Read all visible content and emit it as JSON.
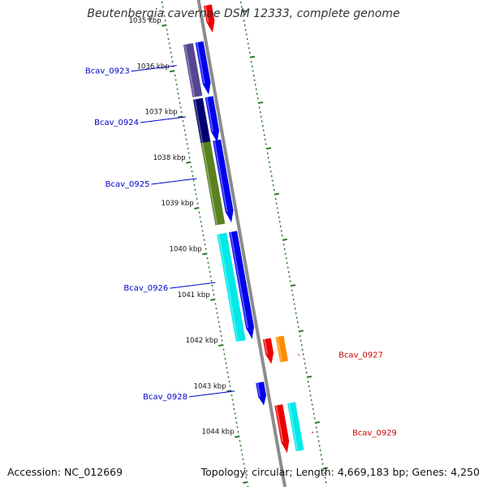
{
  "title": "Beutenbergia cavernae DSM 12333, complete genome",
  "footer": {
    "accession": "Accession: NC_012669",
    "topology": "Topology: circular; Length: 4,669,183 bp; Genes: 4,250"
  },
  "colors": {
    "backbone": "#8c8c8c",
    "ruler_dots": "#2a7a2a",
    "label_plus": "#0000cc",
    "label_minus": "#cc0000"
  },
  "ruler": {
    "labels": [
      "1035 kbp",
      "1036 kbp",
      "1037 kbp",
      "1038 kbp",
      "1039 kbp",
      "1040 kbp",
      "1041 kbp",
      "1042 kbp",
      "1043 kbp",
      "1044 kbp"
    ]
  },
  "genes": {
    "plus": [
      {
        "name": "Bcav_0923",
        "start_kbp": 1035.45,
        "end_kbp": 1036.6,
        "cds_color": "#0000ee",
        "gene_color": "#564690"
      },
      {
        "name": "Bcav_0924",
        "start_kbp": 1036.65,
        "end_kbp": 1037.65,
        "cds_color": "#0000ee",
        "gene_color": "#00006e"
      },
      {
        "name": "Bcav_0925",
        "start_kbp": 1037.6,
        "end_kbp": 1039.4,
        "cds_color": "#0000ee",
        "gene_color": "#5a8020"
      },
      {
        "name": "Bcav_0926",
        "start_kbp": 1039.6,
        "end_kbp": 1041.95,
        "cds_color": "#0000ee",
        "gene_color": "#00e8e8"
      },
      {
        "name": "Bcav_0928",
        "start_kbp": 1042.9,
        "end_kbp": 1043.4,
        "cds_color": "#0000ee",
        "gene_color": ""
      }
    ],
    "minus": [
      {
        "name": "",
        "start_kbp": 1034.7,
        "end_kbp": 1035.3,
        "cds_color": "#ee0000",
        "gene_color": ""
      },
      {
        "name": "Bcav_0927",
        "start_kbp": 1042.0,
        "end_kbp": 1042.55,
        "cds_color": "#ee0000",
        "gene_color": "#ff8c00"
      },
      {
        "name": "Bcav_0929",
        "start_kbp": 1043.45,
        "end_kbp": 1044.5,
        "cds_color": "#ee0000",
        "gene_color": "#00e8e8"
      }
    ]
  }
}
